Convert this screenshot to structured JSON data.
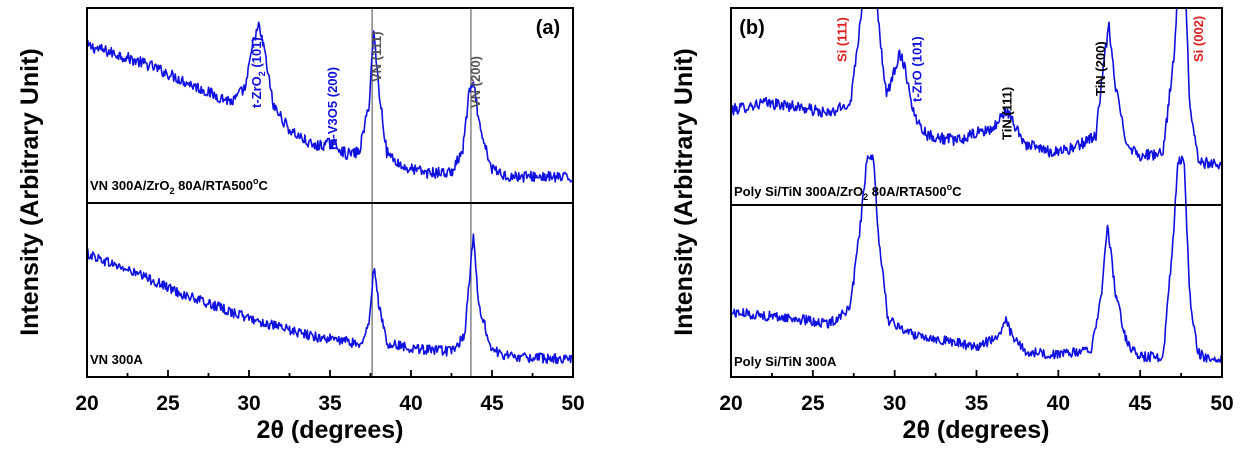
{
  "chart_data": [
    {
      "type": "line",
      "panel_label": "(a)",
      "xlabel": "2θ (degrees)",
      "ylabel": "Intensity (Arbitrary Unit)",
      "xlim": [
        20,
        50
      ],
      "xticks": [
        "20",
        "25",
        "30",
        "35",
        "40",
        "45",
        "50"
      ],
      "grid": false,
      "color": "#1010e0",
      "reference_lines_x": [
        37.6,
        43.7
      ],
      "traces": [
        {
          "label": "VN 300A/ZrO2 80A/RTA500°C",
          "label_parts": {
            "main": "VN 300A/ZrO",
            "sub": "2",
            "mid": " 80A/RTA500",
            "sup": "o",
            "tail": "C"
          },
          "x": [
            20,
            22,
            24,
            26,
            28,
            29,
            29.8,
            30.3,
            30.6,
            30.9,
            31.5,
            32.5,
            34,
            35.2,
            36,
            36.8,
            37.4,
            37.7,
            38.0,
            38.5,
            39.5,
            41,
            42.5,
            43.2,
            43.6,
            43.9,
            44.3,
            45,
            46,
            48,
            50
          ],
          "y": [
            0.82,
            0.77,
            0.71,
            0.63,
            0.55,
            0.52,
            0.6,
            0.86,
            0.92,
            0.82,
            0.5,
            0.37,
            0.28,
            0.3,
            0.24,
            0.25,
            0.5,
            0.9,
            0.6,
            0.25,
            0.17,
            0.14,
            0.14,
            0.26,
            0.58,
            0.6,
            0.35,
            0.16,
            0.12,
            0.12,
            0.11
          ]
        },
        {
          "label": "VN 300A",
          "x": [
            20,
            22,
            24,
            26,
            28,
            30,
            32,
            34,
            36,
            37,
            37.4,
            37.7,
            38.0,
            38.5,
            39.5,
            41,
            42.5,
            43.3,
            43.6,
            43.85,
            44.2,
            45,
            46,
            48,
            50
          ],
          "y": [
            0.72,
            0.64,
            0.56,
            0.47,
            0.4,
            0.33,
            0.27,
            0.22,
            0.19,
            0.17,
            0.3,
            0.64,
            0.42,
            0.18,
            0.16,
            0.14,
            0.13,
            0.22,
            0.55,
            0.82,
            0.4,
            0.14,
            0.1,
            0.09,
            0.08
          ]
        }
      ],
      "annotations": [
        {
          "text": "t-ZrO2 (101)",
          "main": "t-ZrO",
          "sub": "2",
          "tail": " (101)",
          "x": 30.5,
          "color": "#1010e0"
        },
        {
          "text": "m-V3O5 (200)",
          "x": 35.2,
          "color": "#1010e0"
        },
        {
          "text": "VN (111)",
          "x": 37.9,
          "color": "#555555"
        },
        {
          "text": "VN (200)",
          "x": 44.0,
          "color": "#555555"
        }
      ]
    },
    {
      "type": "line",
      "panel_label": "(b)",
      "xlabel": "2θ (degrees)",
      "ylabel": "Intensity (Arbitrary Unit)",
      "xlim": [
        20,
        50
      ],
      "xticks": [
        "20",
        "25",
        "30",
        "35",
        "40",
        "45",
        "50"
      ],
      "grid": false,
      "color": "#1010e0",
      "traces": [
        {
          "label": "Poly Si/TiN 300A/ZrO2 80A/RTA500°C",
          "label_parts": {
            "main": "Poly Si/TiN 300A/ZrO",
            "sub": "2",
            "mid": " 80A/RTA500",
            "sup": "o",
            "tail": "C"
          },
          "x": [
            20,
            22,
            24,
            26,
            27.3,
            27.9,
            28.3,
            28.7,
            29.0,
            29.5,
            30.0,
            30.3,
            30.6,
            31.2,
            32,
            33,
            34,
            35,
            36,
            36.8,
            37.2,
            38,
            39.5,
            41,
            42.3,
            42.8,
            43.1,
            43.5,
            44.2,
            45,
            46.4,
            47.1,
            47.4,
            47.7,
            48.0,
            48.5,
            49,
            50
          ],
          "y": [
            0.48,
            0.52,
            0.5,
            0.46,
            0.52,
            0.95,
            1.3,
            1.3,
            0.95,
            0.55,
            0.7,
            0.78,
            0.72,
            0.45,
            0.35,
            0.33,
            0.32,
            0.36,
            0.38,
            0.48,
            0.42,
            0.3,
            0.26,
            0.28,
            0.35,
            0.75,
            0.92,
            0.6,
            0.3,
            0.24,
            0.25,
            0.8,
            1.3,
            1.3,
            0.55,
            0.23,
            0.2,
            0.2
          ]
        },
        {
          "label": "Poly Si/TiN 300A",
          "x": [
            20,
            22,
            24,
            26,
            27.3,
            27.9,
            28.3,
            28.7,
            29.0,
            29.6,
            31,
            33,
            35,
            36.3,
            36.8,
            37.2,
            38,
            40,
            42,
            42.6,
            43.0,
            43.5,
            44.2,
            45,
            46.4,
            47.0,
            47.3,
            47.7,
            48.0,
            48.5,
            49,
            50
          ],
          "y": [
            0.37,
            0.35,
            0.33,
            0.3,
            0.4,
            0.9,
            1.3,
            1.3,
            0.85,
            0.32,
            0.24,
            0.2,
            0.16,
            0.22,
            0.32,
            0.22,
            0.13,
            0.11,
            0.14,
            0.45,
            0.92,
            0.48,
            0.18,
            0.1,
            0.1,
            0.8,
            1.3,
            1.3,
            0.5,
            0.13,
            0.09,
            0.08
          ]
        }
      ],
      "annotations": [
        {
          "text": "Si (111)",
          "x": 26.8,
          "color": "#e02020"
        },
        {
          "text": "t-ZrO (101)",
          "x": 31.4,
          "color": "#1010e0"
        },
        {
          "text": "TiN (111)",
          "x": 36.9,
          "color": "#000000"
        },
        {
          "text": "TiN (200)",
          "x": 42.6,
          "color": "#000000"
        },
        {
          "text": "Si (002)",
          "x": 48.6,
          "color": "#e02020"
        }
      ]
    }
  ]
}
